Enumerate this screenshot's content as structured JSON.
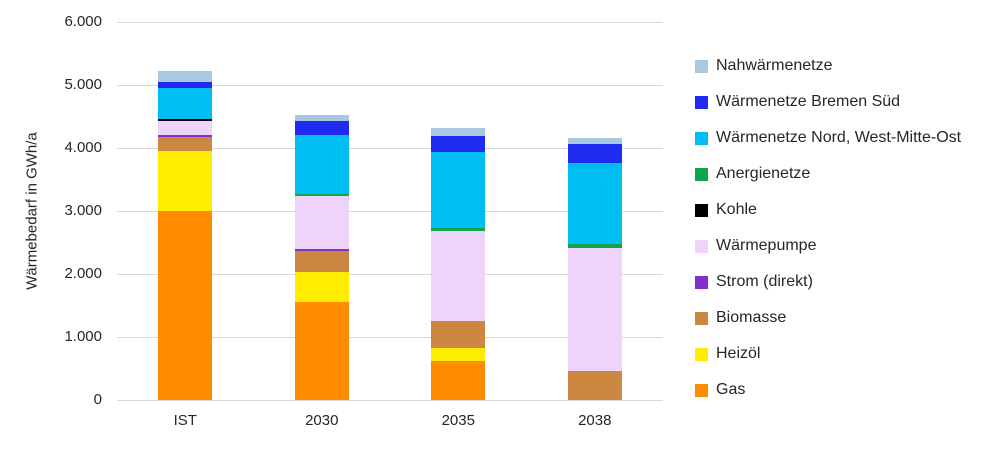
{
  "chart_data": {
    "type": "bar",
    "variant": "stacked-column",
    "title": "",
    "ylabel": "Wärmebedarf in GWh/a",
    "xlabel": "",
    "categories": [
      "IST",
      "2030",
      "2035",
      "2038"
    ],
    "ylim": [
      0,
      6000
    ],
    "grid": "horizontal",
    "gridline_color": "#d9d9d9",
    "legend_position": "right",
    "yticks": [
      {
        "value": 0,
        "label": "0"
      },
      {
        "value": 1000,
        "label": "1.000"
      },
      {
        "value": 2000,
        "label": "2.000"
      },
      {
        "value": 3000,
        "label": "3.000"
      },
      {
        "value": 4000,
        "label": "4.000"
      },
      {
        "value": 5000,
        "label": "5.000"
      },
      {
        "value": 6000,
        "label": "6.000"
      }
    ],
    "series": [
      {
        "name": "Gas",
        "color": "#FF8C00",
        "values": [
          3000,
          1560,
          620,
          0
        ]
      },
      {
        "name": "Heizöl",
        "color": "#FFED00",
        "values": [
          945,
          480,
          200,
          0
        ]
      },
      {
        "name": "Biomasse",
        "color": "#CC8741",
        "values": [
          230,
          330,
          440,
          465
        ]
      },
      {
        "name": "Strom (direkt)",
        "color": "#8430CC",
        "values": [
          30,
          25,
          0,
          0
        ]
      },
      {
        "name": "Wärmepumpe",
        "color": "#EED4FA",
        "values": [
          220,
          845,
          1430,
          1955
        ]
      },
      {
        "name": "Kohle",
        "color": "#000000",
        "values": [
          35,
          0,
          0,
          0
        ]
      },
      {
        "name": "Anergienetze",
        "color": "#0DA64F",
        "values": [
          0,
          25,
          45,
          50
        ]
      },
      {
        "name": "Wärmenetze Nord, West-Mitte-Ost",
        "color": "#00BDF2",
        "values": [
          490,
          950,
          1200,
          1290
        ]
      },
      {
        "name": "Wärmenetze Bremen Süd",
        "color": "#1F2BEE",
        "values": [
          100,
          210,
          260,
          300
        ]
      },
      {
        "name": "Nahwärmenetze",
        "color": "#A9C8E1",
        "values": [
          175,
          100,
          120,
          105
        ]
      }
    ],
    "series_order": "bottom-to-top",
    "totals": {
      "IST": 5225,
      "2030": 4525,
      "2035": 4315,
      "2038": 4165
    },
    "legend_labels_top_to_bottom": [
      "Nahwärmenetze",
      "Wärmenetze Bremen Süd",
      "Wärmenetze Nord, West-Mitte-Ost",
      "Anergienetze",
      "Kohle",
      "Wärmepumpe",
      "Strom (direkt)",
      "Biomasse",
      "Heizöl",
      "Gas"
    ]
  }
}
